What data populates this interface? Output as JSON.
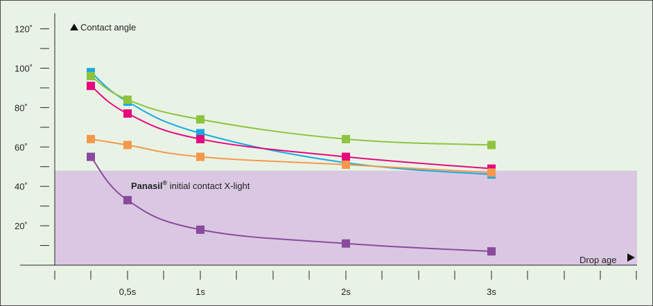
{
  "chart_data": {
    "type": "line",
    "ylabel": "Contact angle",
    "xlabel": "Drop age",
    "x_ticks": [
      "0,5s",
      "1s",
      "2s",
      "3s"
    ],
    "y_ticks": [
      "120˚",
      "100˚",
      "80˚",
      "60˚",
      "40˚",
      "20˚"
    ],
    "ylim": [
      0,
      125
    ],
    "grid": false,
    "band": {
      "label_bold": "Panasil",
      "label_reg": "®",
      "label_rest": " initial contact X-light",
      "y_max": 48,
      "color": "#dac8e3"
    },
    "series": [
      {
        "color": "#1aa9e1",
        "x": [
          0.25,
          0.5,
          1,
          2,
          3
        ],
        "y": [
          98,
          83,
          67,
          52,
          46
        ]
      },
      {
        "color": "#8cc43f",
        "x": [
          0.25,
          0.5,
          1,
          2,
          3
        ],
        "y": [
          96,
          84,
          74,
          64,
          61
        ]
      },
      {
        "color": "#e5087e",
        "x": [
          0.25,
          0.5,
          1,
          2,
          3
        ],
        "y": [
          91,
          77,
          64,
          55,
          49
        ]
      },
      {
        "color": "#f4994c",
        "x": [
          0.25,
          0.5,
          1,
          2,
          3
        ],
        "y": [
          64,
          61,
          55,
          51,
          47
        ]
      },
      {
        "color": "#8a4a9d",
        "x": [
          0.25,
          0.5,
          1,
          2,
          3
        ],
        "y": [
          55,
          33,
          18,
          11,
          7
        ]
      }
    ]
  }
}
